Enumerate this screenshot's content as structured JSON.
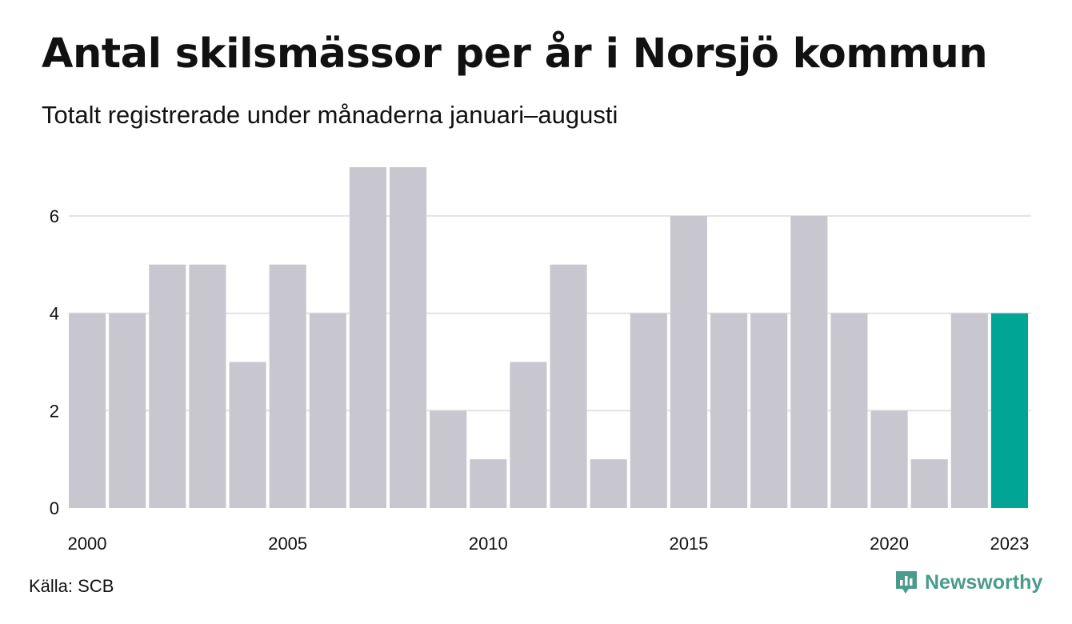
{
  "title": "Antal skilsmässor per år i Norsjö kommun",
  "subtitle": "Totalt registrerade under månaderna januari–augusti",
  "source": "Källa: SCB",
  "brand": "Newsworthy",
  "colors": {
    "bar": "#c8c7cf",
    "highlight": "#00a595",
    "grid": "#e3e3e3",
    "brand": "#4a9b8c"
  },
  "chart_data": {
    "type": "bar",
    "categories": [
      "2000",
      "2001",
      "2002",
      "2003",
      "2004",
      "2005",
      "2006",
      "2007",
      "2008",
      "2009",
      "2010",
      "2011",
      "2012",
      "2013",
      "2014",
      "2015",
      "2016",
      "2017",
      "2018",
      "2019",
      "2020",
      "2021",
      "2022",
      "2023"
    ],
    "values": [
      4,
      4,
      5,
      5,
      3,
      5,
      4,
      7,
      7,
      2,
      1,
      3,
      5,
      1,
      4,
      6,
      4,
      4,
      6,
      4,
      2,
      1,
      4,
      4
    ],
    "highlight": "2023",
    "x_tick_labels": [
      "2000",
      "2005",
      "2010",
      "2015",
      "2020",
      "2023"
    ],
    "y_ticks": [
      0,
      2,
      4,
      6
    ],
    "ylim": [
      0,
      7
    ],
    "grid": true,
    "xlabel": "",
    "ylabel": ""
  }
}
